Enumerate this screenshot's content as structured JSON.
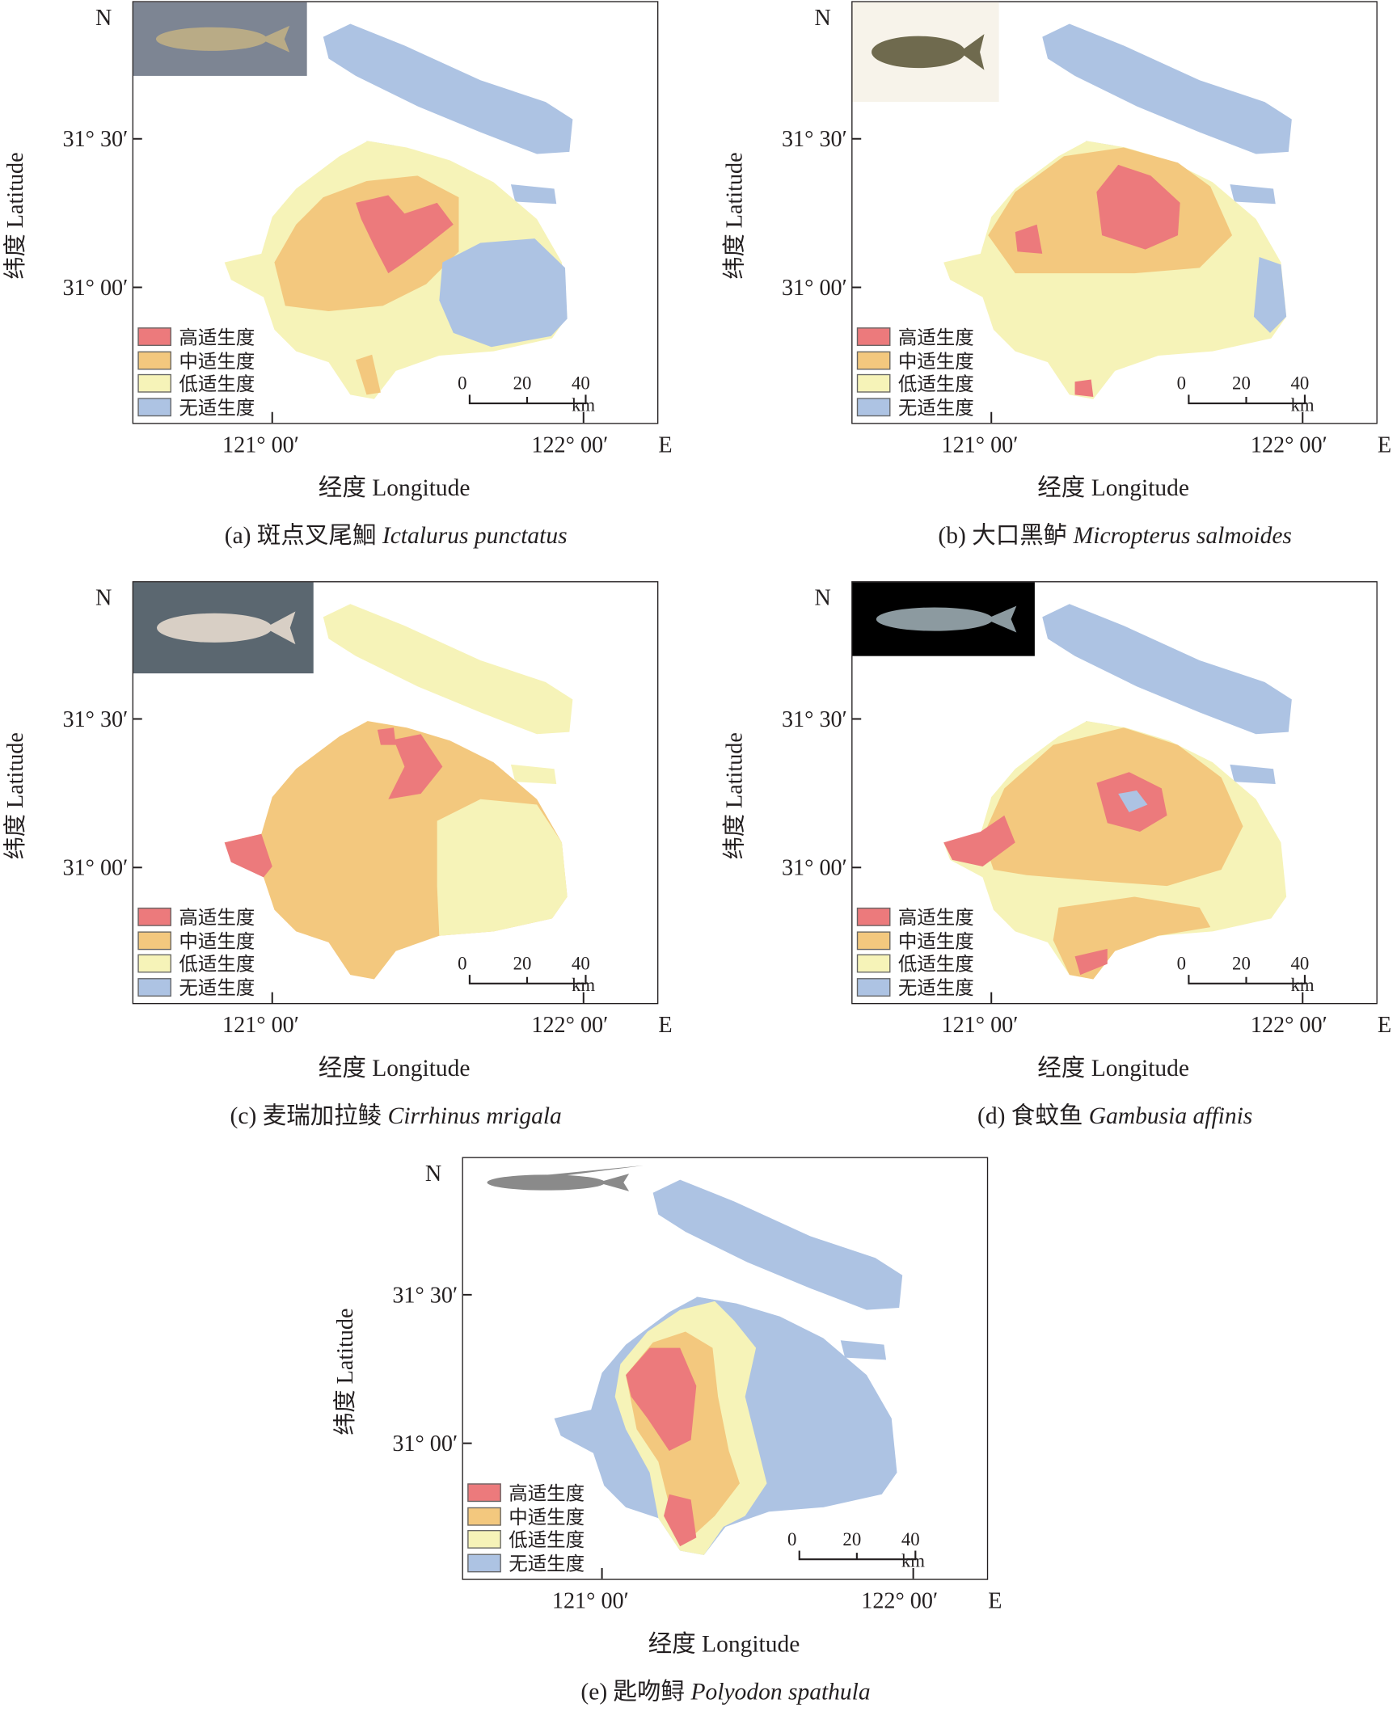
{
  "colors": {
    "high": "#ec7a7c",
    "mid": "#f3c87e",
    "low": "#f6f3b8",
    "none": "#adc3e3"
  },
  "legend": [
    "高适生度",
    "中适生度",
    "低适生度",
    "无适生度"
  ],
  "axes": {
    "north": "N",
    "east": "E",
    "lat_ticks": [
      "31° 30′",
      "31° 00′"
    ],
    "lon_ticks": [
      "121° 00′",
      "122° 00′"
    ],
    "ylabel": "纬度 Latitude",
    "xlabel": "经度 Longitude"
  },
  "scale_bar": [
    "0",
    "20",
    "40 km"
  ],
  "panels": [
    {
      "id": "a",
      "tag": "(a)",
      "cn": "斑点叉尾鮰",
      "latin": "Ictalurus punctatus"
    },
    {
      "id": "b",
      "tag": "(b)",
      "cn": "大口黑鲈",
      "latin": "Micropterus salmoides"
    },
    {
      "id": "c",
      "tag": "(c)",
      "cn": "麦瑞加拉鲮",
      "latin": "Cirrhinus mrigala"
    },
    {
      "id": "d",
      "tag": "(d)",
      "cn": "食蚊鱼",
      "latin": "Gambusia affinis"
    },
    {
      "id": "e",
      "tag": "(e)",
      "cn": "匙吻鲟",
      "latin": "Polyodon spathula"
    }
  ]
}
